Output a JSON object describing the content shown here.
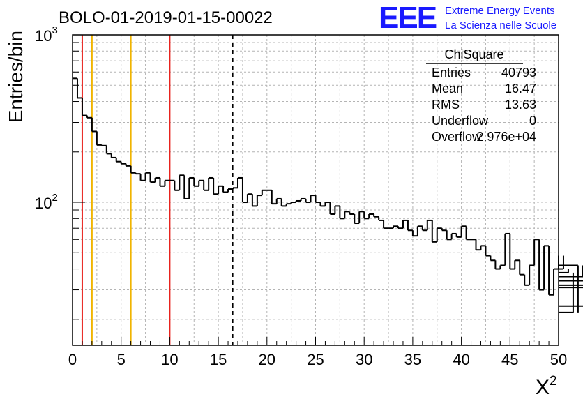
{
  "title": "BOLO-01-2019-01-15-00022",
  "logo": {
    "mark": "EEE",
    "line1": "Extreme Energy Events",
    "line2": "La Scienza nelle Scuole",
    "color": "#1a1aff"
  },
  "stats": {
    "name": "ChiSquare",
    "rows": [
      {
        "label": "Entries",
        "value": "40793"
      },
      {
        "label": "Mean",
        "value": "16.47"
      },
      {
        "label": "RMS",
        "value": "13.63"
      },
      {
        "label": "Underflow",
        "value": "0"
      },
      {
        "label": "Overflow",
        "value": "2.976e+04"
      }
    ]
  },
  "chart_data": {
    "type": "histogram",
    "title": "BOLO-01-2019-01-15-00022",
    "xlabel": "X",
    "xlabel_superscript": "2",
    "ylabel": "Entries/bin",
    "xlim": [
      0,
      50
    ],
    "ylim": [
      14,
      1000
    ],
    "yscale": "log",
    "grid": true,
    "xticks": [
      "0",
      "5",
      "10",
      "15",
      "20",
      "25",
      "30",
      "35",
      "40",
      "45",
      "50"
    ],
    "ytick_labels": [
      {
        "value": 100,
        "base": "10",
        "exp": "2"
      },
      {
        "value": 1000,
        "base": "10",
        "exp": "3"
      }
    ],
    "bin_width": 0.5,
    "values": [
      550,
      420,
      330,
      320,
      265,
      220,
      218,
      195,
      185,
      175,
      170,
      165,
      150,
      148,
      135,
      150,
      132,
      140,
      125,
      135,
      135,
      118,
      145,
      105,
      140,
      125,
      135,
      118,
      140,
      112,
      125,
      115,
      120,
      122,
      140,
      100,
      112,
      95,
      110,
      118,
      118,
      98,
      105,
      95,
      98,
      100,
      102,
      105,
      100,
      110,
      100,
      95,
      100,
      85,
      95,
      80,
      88,
      85,
      75,
      88,
      80,
      85,
      82,
      78,
      70,
      70,
      72,
      70,
      78,
      68,
      63,
      72,
      68,
      78,
      58,
      70,
      68,
      60,
      65,
      62,
      72,
      60,
      60,
      52,
      55,
      48,
      45,
      40,
      42,
      65,
      40,
      45,
      37,
      32,
      42,
      60,
      30,
      55,
      28,
      40,
      48,
      40,
      38,
      22,
      42,
      36,
      24,
      36,
      34,
      32,
      31
    ],
    "vertical_lines": [
      {
        "x": 1,
        "color": "#e8231e",
        "style": "solid"
      },
      {
        "x": 2,
        "color": "#f0b400",
        "style": "solid"
      },
      {
        "x": 6,
        "color": "#f0b400",
        "style": "solid"
      },
      {
        "x": 10,
        "color": "#e8231e",
        "style": "solid"
      },
      {
        "x": 16.47,
        "color": "#000000",
        "style": "dashed"
      }
    ]
  }
}
